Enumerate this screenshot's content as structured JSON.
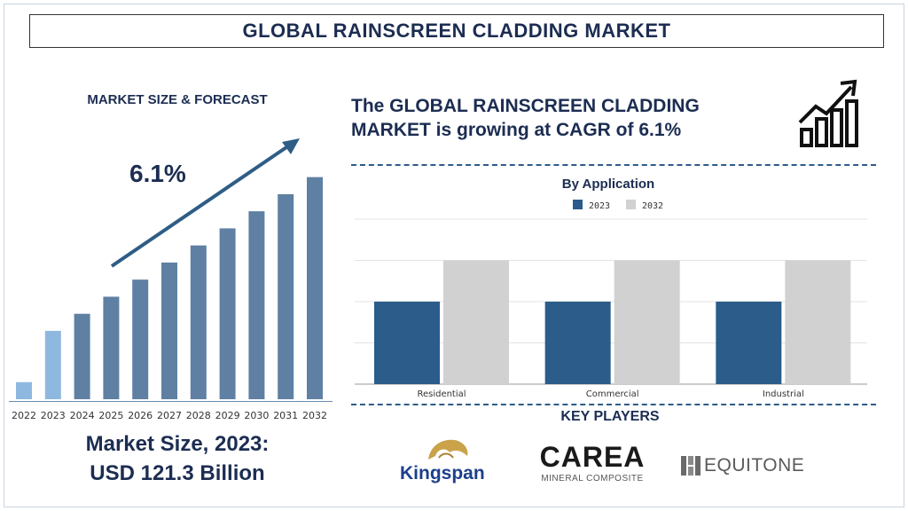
{
  "title": "GLOBAL RAINSCREEN CLADDING MARKET",
  "left_panel": {
    "subtitle": "MARKET SIZE & FORECAST",
    "cagr": "6.1%",
    "market_size_line1": "Market Size, 2023:",
    "market_size_line2": "USD 121.3 Billion"
  },
  "headline": "The GLOBAL RAINSCREEN CLADDING MARKET is growing at CAGR of 6.1%",
  "key_players": {
    "title": "KEY PLAYERS",
    "logos": [
      {
        "name": "Kingspan"
      },
      {
        "name": "CAREA",
        "sub": "MINERAL COMPOSITE"
      },
      {
        "name": "EQUITONE"
      }
    ]
  },
  "colors": {
    "navy": "#1c2d52",
    "bar_steel": "#5f80a3",
    "bar_light": "#8fb8e0",
    "series_2023": "#2b5c8a",
    "series_2032": "#d1d1d1"
  },
  "icons": [
    "trend-up-icon",
    "kingspan-lion-icon",
    "equitone-grid-icon"
  ],
  "chart_data": [
    {
      "type": "bar",
      "title": "",
      "categories": [
        "2022",
        "2023",
        "2024",
        "2025",
        "2026",
        "2027",
        "2028",
        "2029",
        "2030",
        "2031",
        "2032"
      ],
      "values": [
        1,
        4,
        5,
        6,
        7,
        8,
        9,
        10,
        11,
        12,
        13
      ],
      "highlight": [
        "2022",
        "2023"
      ],
      "ylim": [
        0,
        13.5
      ],
      "grid": false,
      "trend_arrow": true
    },
    {
      "type": "bar",
      "title": "By Application",
      "categories": [
        "Residential",
        "Commercial",
        "Industrial"
      ],
      "series": [
        {
          "name": "2023",
          "values": [
            2,
            2,
            2
          ]
        },
        {
          "name": "2032",
          "values": [
            3,
            3,
            3
          ]
        }
      ],
      "ylim": [
        0,
        4
      ],
      "grid": true,
      "legend": "top-center"
    }
  ]
}
